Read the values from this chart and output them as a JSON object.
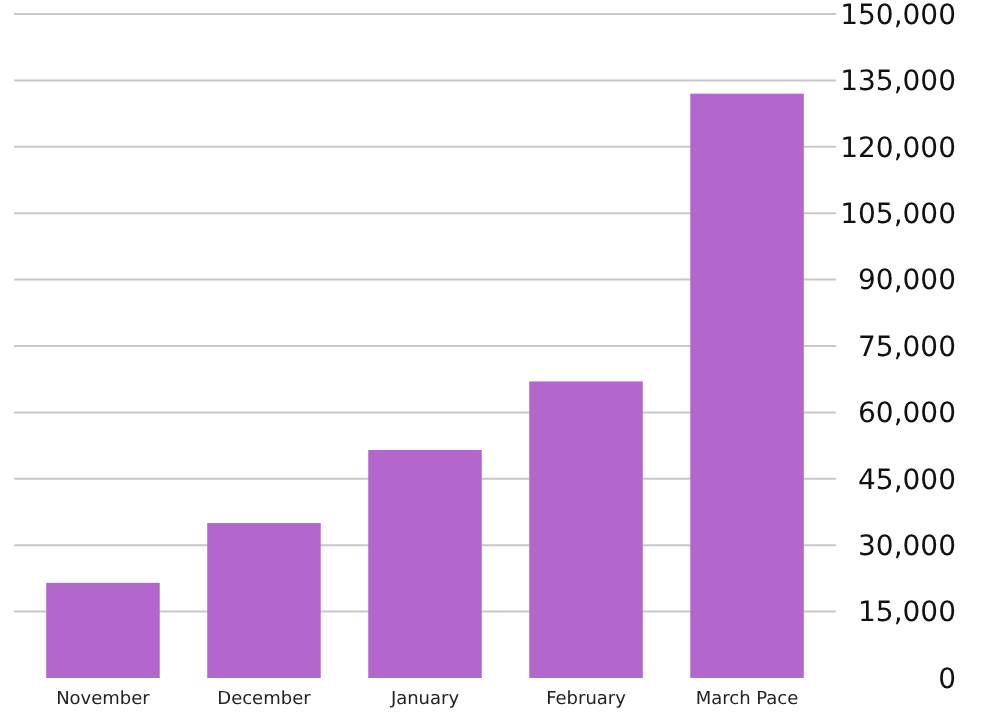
{
  "chart_data": {
    "type": "bar",
    "categories": [
      "November",
      "December",
      "January",
      "February",
      "March Pace"
    ],
    "values": [
      21500,
      35000,
      51500,
      67000,
      132000
    ],
    "color": "#b366cc",
    "ylim": [
      0,
      150000
    ],
    "yticks": [
      {
        "value": 0,
        "label": "0"
      },
      {
        "value": 15000,
        "label": "15,000"
      },
      {
        "value": 30000,
        "label": "30,000"
      },
      {
        "value": 45000,
        "label": "45,000"
      },
      {
        "value": 60000,
        "label": "60,000"
      },
      {
        "value": 75000,
        "label": "75,000"
      },
      {
        "value": 90000,
        "label": "90,000"
      },
      {
        "value": 105000,
        "label": "105,000"
      },
      {
        "value": 120000,
        "label": "120,000"
      },
      {
        "value": 135000,
        "label": "135,000"
      },
      {
        "value": 150000,
        "label": "150,000"
      }
    ],
    "grid": "y"
  }
}
